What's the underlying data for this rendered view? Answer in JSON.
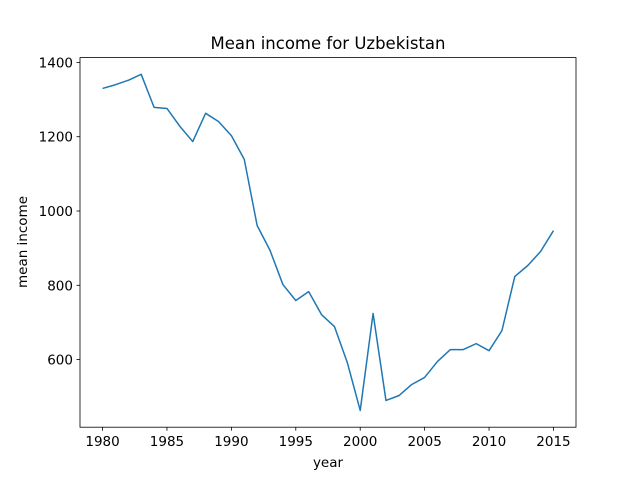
{
  "chart_data": {
    "type": "line",
    "title": "Mean income for Uzbekistan",
    "x_label": "year",
    "y_label": "mean income",
    "x": [
      1980,
      1981,
      1982,
      1983,
      1984,
      1985,
      1986,
      1987,
      1988,
      1989,
      1990,
      1991,
      1992,
      1993,
      1994,
      1995,
      1996,
      1997,
      1998,
      1999,
      2000,
      2001,
      2002,
      2003,
      2004,
      2005,
      2006,
      2007,
      2008,
      2009,
      2010,
      2011,
      2012,
      2013,
      2014,
      2015
    ],
    "series": [
      {
        "name": "mean income",
        "color": "#1f77b4",
        "values": [
          1330,
          1340,
          1352,
          1368,
          1279,
          1276,
          1228,
          1187,
          1263,
          1241,
          1203,
          1139,
          961,
          894,
          802,
          759,
          783,
          721,
          689,
          592,
          463,
          724,
          490,
          503,
          533,
          552,
          595,
          627,
          627,
          643,
          624,
          678,
          824,
          853,
          891,
          947
        ]
      }
    ],
    "xlim": [
      1978.25,
      2016.75
    ],
    "xticks": [
      1980,
      1985,
      1990,
      1995,
      2000,
      2005,
      2010,
      2015
    ],
    "ylim": [
      418,
      1413
    ],
    "yticks": [
      600,
      800,
      1000,
      1200,
      1400
    ]
  }
}
